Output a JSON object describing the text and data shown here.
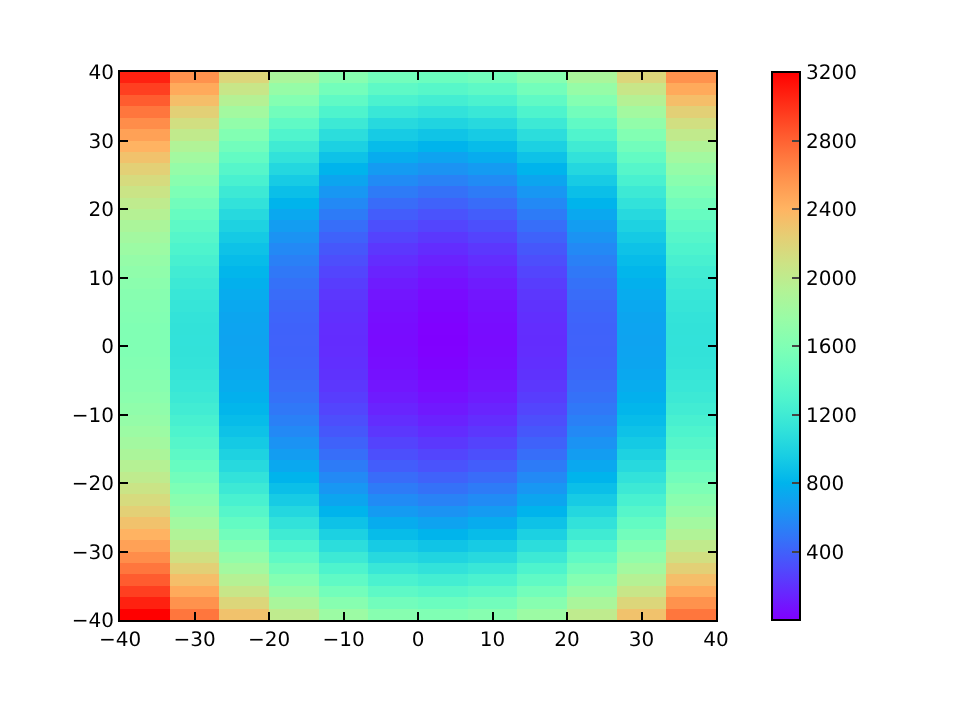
{
  "chart_data": {
    "type": "heatmap",
    "x": [
      -36.667,
      -30,
      -23.333,
      -16.667,
      -10,
      -3.333,
      3.333,
      10,
      16.667,
      23.333,
      30,
      36.667
    ],
    "y": [
      39.167,
      37.5,
      35.833,
      34.167,
      32.5,
      30.833,
      29.167,
      27.5,
      25.833,
      24.167,
      22.5,
      20.833,
      19.167,
      17.5,
      15.833,
      14.167,
      12.5,
      10.833,
      9.167,
      7.5,
      5.833,
      4.167,
      2.5,
      0.833,
      -0.833,
      -2.5,
      -4.167,
      -5.833,
      -7.5,
      -9.167,
      -10.833,
      -12.5,
      -14.167,
      -15.833,
      -17.5,
      -19.167,
      -20.833,
      -22.5,
      -24.167,
      -25.833,
      -27.5,
      -29.167,
      -30.833,
      -32.5,
      -34.167,
      -35.833,
      -37.5,
      -39.167
    ],
    "cells": [
      [
        3069,
        2580,
        2180,
        1869,
        1647,
        1513,
        1469,
        1513,
        1647,
        1869,
        2180,
        2580
      ],
      [
        2944,
        2455,
        2055,
        1744,
        1522,
        1388,
        1344,
        1388,
        1522,
        1744,
        2055,
        2455
      ],
      [
        2825,
        2336,
        1936,
        1625,
        1403,
        1269,
        1225,
        1269,
        1403,
        1625,
        1936,
        2336
      ],
      [
        2711,
        2222,
        1822,
        1511,
        1289,
        1155,
        1111,
        1155,
        1289,
        1511,
        1822,
        2222
      ],
      [
        2603,
        2114,
        1714,
        1403,
        1181,
        1047,
        1003,
        1047,
        1181,
        1403,
        1714,
        2114
      ],
      [
        2500,
        2011,
        1611,
        1300,
        1078,
        944,
        900,
        944,
        1078,
        1300,
        1611,
        2011
      ],
      [
        2403,
        1914,
        1514,
        1203,
        981,
        847,
        803,
        847,
        981,
        1203,
        1514,
        1914
      ],
      [
        2311,
        1822,
        1422,
        1111,
        889,
        755,
        711,
        755,
        889,
        1111,
        1422,
        1822
      ],
      [
        2225,
        1736,
        1336,
        1025,
        803,
        669,
        625,
        669,
        803,
        1025,
        1336,
        1736
      ],
      [
        2144,
        1655,
        1255,
        944,
        722,
        588,
        544,
        588,
        722,
        944,
        1255,
        1655
      ],
      [
        2069,
        1580,
        1180,
        869,
        647,
        513,
        469,
        513,
        647,
        869,
        1180,
        1580
      ],
      [
        2000,
        1511,
        1111,
        800,
        578,
        444,
        400,
        444,
        578,
        800,
        1111,
        1511
      ],
      [
        1936,
        1447,
        1047,
        736,
        514,
        380,
        336,
        380,
        514,
        736,
        1047,
        1447
      ],
      [
        1878,
        1389,
        989,
        678,
        456,
        322,
        278,
        322,
        456,
        678,
        989,
        1389
      ],
      [
        1825,
        1336,
        936,
        625,
        403,
        269,
        225,
        269,
        403,
        625,
        936,
        1336
      ],
      [
        1778,
        1289,
        889,
        578,
        356,
        222,
        178,
        222,
        356,
        578,
        889,
        1289
      ],
      [
        1736,
        1247,
        847,
        536,
        314,
        180,
        136,
        180,
        314,
        536,
        847,
        1247
      ],
      [
        1700,
        1211,
        811,
        500,
        278,
        144,
        100,
        144,
        278,
        500,
        811,
        1211
      ],
      [
        1669,
        1180,
        780,
        469,
        247,
        113,
        69,
        113,
        247,
        469,
        780,
        1180
      ],
      [
        1644,
        1155,
        755,
        444,
        222,
        88,
        44,
        88,
        222,
        444,
        755,
        1155
      ],
      [
        1625,
        1136,
        736,
        425,
        203,
        69,
        25,
        69,
        203,
        425,
        736,
        1136
      ],
      [
        1611,
        1122,
        722,
        411,
        189,
        55,
        11,
        55,
        189,
        411,
        722,
        1122
      ],
      [
        1603,
        1114,
        714,
        403,
        181,
        47,
        3,
        47,
        181,
        403,
        714,
        1114
      ],
      [
        1600,
        1111,
        711,
        400,
        178,
        44,
        0,
        44,
        178,
        400,
        711,
        1111
      ],
      [
        1603,
        1114,
        714,
        403,
        181,
        47,
        3,
        47,
        181,
        403,
        714,
        1114
      ],
      [
        1611,
        1122,
        722,
        411,
        189,
        55,
        11,
        55,
        189,
        411,
        722,
        1122
      ],
      [
        1625,
        1136,
        736,
        425,
        203,
        69,
        25,
        69,
        203,
        425,
        736,
        1136
      ],
      [
        1644,
        1155,
        755,
        444,
        222,
        88,
        44,
        88,
        222,
        444,
        755,
        1155
      ],
      [
        1669,
        1180,
        780,
        469,
        247,
        113,
        69,
        113,
        247,
        469,
        780,
        1180
      ],
      [
        1700,
        1211,
        811,
        500,
        278,
        144,
        100,
        144,
        278,
        500,
        811,
        1211
      ],
      [
        1736,
        1247,
        847,
        536,
        314,
        180,
        136,
        180,
        314,
        536,
        847,
        1247
      ],
      [
        1778,
        1289,
        889,
        578,
        356,
        222,
        178,
        222,
        356,
        578,
        889,
        1289
      ],
      [
        1825,
        1336,
        936,
        625,
        403,
        269,
        225,
        269,
        403,
        625,
        936,
        1336
      ],
      [
        1878,
        1389,
        989,
        678,
        456,
        322,
        278,
        322,
        456,
        678,
        989,
        1389
      ],
      [
        1936,
        1447,
        1047,
        736,
        514,
        380,
        336,
        380,
        514,
        736,
        1047,
        1447
      ],
      [
        2000,
        1511,
        1111,
        800,
        578,
        444,
        400,
        444,
        578,
        800,
        1111,
        1511
      ],
      [
        2069,
        1580,
        1180,
        869,
        647,
        513,
        469,
        513,
        647,
        869,
        1180,
        1580
      ],
      [
        2144,
        1655,
        1255,
        944,
        722,
        588,
        544,
        588,
        722,
        944,
        1255,
        1655
      ],
      [
        2225,
        1736,
        1336,
        1025,
        803,
        669,
        625,
        669,
        803,
        1025,
        1336,
        1736
      ],
      [
        2311,
        1822,
        1422,
        1111,
        889,
        755,
        711,
        755,
        889,
        1111,
        1422,
        1822
      ],
      [
        2403,
        1914,
        1514,
        1203,
        981,
        847,
        803,
        847,
        981,
        1203,
        1514,
        1914
      ],
      [
        2500,
        2011,
        1611,
        1300,
        1078,
        944,
        900,
        944,
        1078,
        1300,
        1611,
        2011
      ],
      [
        2603,
        2114,
        1714,
        1403,
        1181,
        1047,
        1003,
        1047,
        1181,
        1403,
        1714,
        2114
      ],
      [
        2711,
        2222,
        1822,
        1511,
        1289,
        1155,
        1111,
        1155,
        1289,
        1511,
        1822,
        2222
      ],
      [
        2825,
        2336,
        1936,
        1625,
        1403,
        1269,
        1225,
        1269,
        1403,
        1625,
        1936,
        2336
      ],
      [
        2944,
        2455,
        2055,
        1744,
        1522,
        1388,
        1344,
        1388,
        1522,
        1744,
        2055,
        2455
      ],
      [
        3069,
        2580,
        2180,
        1869,
        1647,
        1513,
        1469,
        1513,
        1647,
        1869,
        2180,
        2580
      ],
      [
        3200,
        2711,
        2311,
        2000,
        1778,
        1644,
        1600,
        1644,
        1778,
        2000,
        2311,
        2711
      ]
    ],
    "xlim": [
      -40,
      40
    ],
    "ylim": [
      -40,
      40
    ],
    "xticks": [
      -40,
      -30,
      -20,
      -10,
      0,
      10,
      20,
      30,
      40
    ],
    "yticks": [
      -40,
      -30,
      -20,
      -10,
      0,
      10,
      20,
      30,
      40
    ],
    "clim": [
      0,
      3200
    ],
    "cticks": [
      400,
      800,
      1200,
      1600,
      2000,
      2400,
      2800,
      3200
    ]
  }
}
